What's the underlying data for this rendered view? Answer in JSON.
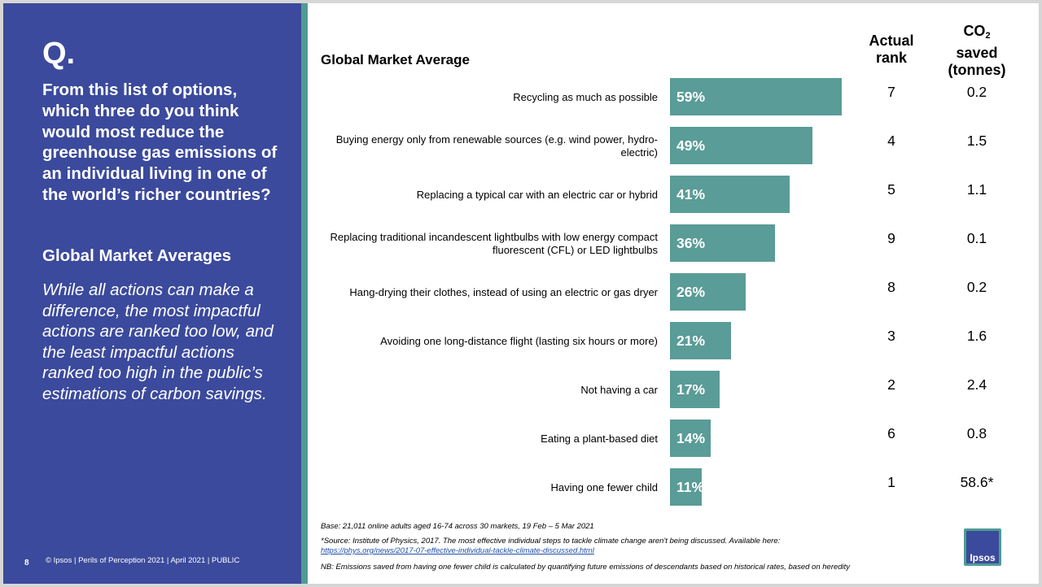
{
  "left": {
    "q_label": "Q.",
    "question": "From this list of options, which three do you think would most reduce the greenhouse gas emissions of an individual living in one of the world’s richer countries?",
    "subhead": "Global Market Averages",
    "note": "While all actions can make a difference, the most impactful actions are ranked too low, and the least impactful actions ranked too high in the public’s estimations of carbon savings.",
    "page_number": "8",
    "footer": "© Ipsos | Perils of Perception 2021 | April 2021 | PUBLIC"
  },
  "table_headers": {
    "rank_line1": "Actual",
    "rank_line2": "rank",
    "co2_main": "CO",
    "co2_sub": "2",
    "co2_line2": "saved",
    "co2_line3": "(tonnes)"
  },
  "chart_data": {
    "type": "bar",
    "orientation": "horizontal",
    "title": "Global Market Average",
    "categories": [
      "Recycling as much as possible",
      "Buying energy only from renewable sources (e.g. wind power, hydro-electric)",
      "Replacing a typical car with an electric car or hybrid",
      "Replacing traditional incandescent lightbulbs with low energy compact fluorescent (CFL) or LED lightbulbs",
      "Hang-drying their clothes, instead of using an electric or gas dryer",
      "Avoiding one long-distance flight (lasting six hours or more)",
      "Not having a car",
      "Eating a plant-based diet",
      "Having one fewer child"
    ],
    "values": [
      59,
      49,
      41,
      36,
      26,
      21,
      17,
      14,
      11
    ],
    "value_labels": [
      "59%",
      "49%",
      "41%",
      "36%",
      "26%",
      "21%",
      "17%",
      "14%",
      "11%"
    ],
    "actual_rank": [
      "7",
      "4",
      "5",
      "9",
      "8",
      "3",
      "2",
      "6",
      "1"
    ],
    "co2_saved": [
      "0.2",
      "1.5",
      "1.1",
      "0.1",
      "0.2",
      "1.6",
      "2.4",
      "0.8",
      "58.6*"
    ],
    "bar_color": "#5a9c97",
    "grid": false
  },
  "notes": {
    "base": "Base: 21,011 online adults aged 16-74 across 30 markets,  19 Feb – 5 Mar 2021",
    "source": "*Source: Institute of Physics, 2017. The most effective individual steps to tackle climate change aren't being discussed. Available here:",
    "source_link": "https://phys.org/news/2017-07-effective-individual-tackle-climate-discussed.html",
    "nb": "NB: Emissions saved from having one fewer child is calculated by quantifying future emissions of descendants based on historical rates, based on heredity"
  },
  "logo": {
    "text": "Ipsos"
  },
  "colors": {
    "panel": "#3b4a9c",
    "accent": "#4f9c94",
    "bar": "#5a9c97"
  }
}
